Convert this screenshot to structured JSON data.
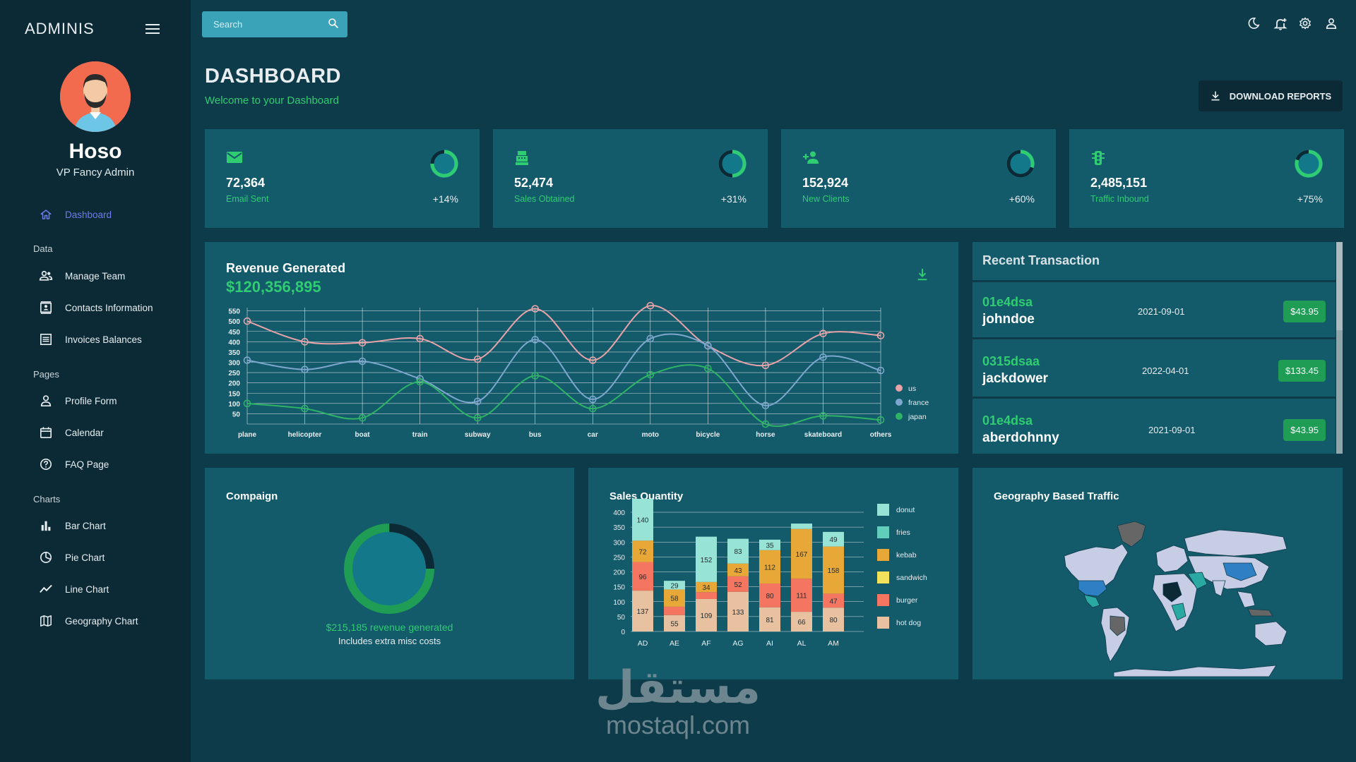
{
  "sidebar": {
    "brand": "ADMINIS",
    "profile": {
      "name": "Hoso",
      "role": "VP Fancy Admin"
    },
    "dashboard_label": "Dashboard",
    "sections": {
      "data": "Data",
      "pages": "Pages",
      "charts": "Charts"
    },
    "items": {
      "manage_team": "Manage Team",
      "contacts": "Contacts Information",
      "invoices": "Invoices Balances",
      "profile_form": "Profile Form",
      "calendar": "Calendar",
      "faq": "FAQ Page",
      "bar_chart": "Bar Chart",
      "pie_chart": "Pie Chart",
      "line_chart": "Line Chart",
      "geo_chart": "Geography Chart"
    }
  },
  "topbar": {
    "search_placeholder": "Search"
  },
  "header": {
    "title": "DASHBOARD",
    "subtitle": "Welcome to your Dashboard",
    "download_label": "DOWNLOAD REPORTS"
  },
  "stats": [
    {
      "value": "72,364",
      "label": "Email Sent",
      "change": "+14%",
      "progress": 0.75,
      "icon": "email-icon"
    },
    {
      "value": "52,474",
      "label": "Sales Obtained",
      "change": "+31%",
      "progress": 0.5,
      "icon": "point-of-sale-icon"
    },
    {
      "value": "152,924",
      "label": "New Clients",
      "change": "+60%",
      "progress": 0.3,
      "icon": "person-add-icon"
    },
    {
      "value": "2,485,151",
      "label": "Traffic Inbound",
      "change": "+75%",
      "progress": 0.8,
      "icon": "traffic-icon"
    }
  ],
  "revenue": {
    "title": "Revenue Generated",
    "amount": "$120,356,895"
  },
  "transactions": {
    "title": "Recent Transaction",
    "items": [
      {
        "txId": "01e4dsa",
        "user": "johndoe",
        "date": "2021-09-01",
        "cost": "$43.95"
      },
      {
        "txId": "0315dsaa",
        "user": "jackdower",
        "date": "2022-04-01",
        "cost": "$133.45"
      },
      {
        "txId": "01e4dsa",
        "user": "aberdohnny",
        "date": "2021-09-01",
        "cost": "$43.95"
      }
    ]
  },
  "campaign": {
    "title": "Compaign",
    "revenue_text": "$215,185 revenue generated",
    "note": "Includes extra misc costs",
    "progress": 0.75
  },
  "sales": {
    "title": "Sales Quantity"
  },
  "geography": {
    "title": "Geography Based Traffic"
  },
  "colors": {
    "accent_green": "#2fcc71",
    "card_bg": "#135a6a",
    "sidebar_bg": "#0b2a36",
    "page_bg": "#0d3b4a"
  },
  "watermark": {
    "arabic": "مستقل",
    "latin": "mostaql.com"
  },
  "chart_data": [
    {
      "type": "line",
      "categories": [
        "plane",
        "helicopter",
        "boat",
        "train",
        "subway",
        "bus",
        "car",
        "moto",
        "bicycle",
        "horse",
        "skateboard",
        "others"
      ],
      "ylim": [
        0,
        600
      ],
      "yticks": [
        50,
        100,
        150,
        200,
        250,
        300,
        350,
        400,
        450,
        500,
        550
      ],
      "grid": true,
      "legend": "right",
      "series": [
        {
          "name": "us",
          "color": "#e8a3a8",
          "values": [
            500,
            400,
            395,
            415,
            315,
            560,
            310,
            575,
            380,
            285,
            440,
            430
          ]
        },
        {
          "name": "france",
          "color": "#7ea7cf",
          "values": [
            310,
            265,
            305,
            220,
            110,
            410,
            120,
            415,
            380,
            90,
            325,
            260
          ]
        },
        {
          "name": "japan",
          "color": "#2fb366",
          "values": [
            100,
            75,
            30,
            205,
            30,
            235,
            75,
            240,
            270,
            0,
            40,
            20
          ]
        }
      ]
    },
    {
      "type": "bar",
      "stacked": true,
      "categories": [
        "AD",
        "AE",
        "AF",
        "AG",
        "AI",
        "AL",
        "AM"
      ],
      "ylim": [
        0,
        450
      ],
      "yticks": [
        0,
        50,
        100,
        150,
        200,
        250,
        300,
        350,
        400
      ],
      "legend": "right",
      "series": [
        {
          "name": "hot dog",
          "color": "#e8c1a0",
          "values": [
            137,
            55,
            109,
            133,
            81,
            66,
            80
          ]
        },
        {
          "name": "burger",
          "color": "#f47560",
          "values": [
            96,
            28,
            23,
            52,
            80,
            111,
            47
          ]
        },
        {
          "name": "sandwich",
          "color": "#f1e15b",
          "values": [
            0,
            0,
            0,
            0,
            0,
            0,
            0
          ]
        },
        {
          "name": "kebab",
          "color": "#e8a838",
          "values": [
            72,
            58,
            34,
            43,
            112,
            167,
            158
          ]
        },
        {
          "name": "fries",
          "color": "#61cdbb",
          "values": [
            0,
            0,
            0,
            0,
            0,
            0,
            0
          ]
        },
        {
          "name": "donut",
          "color": "#97e3d5",
          "values": [
            140,
            29,
            152,
            83,
            35,
            18,
            49
          ]
        }
      ],
      "legend_order": [
        "donut",
        "fries",
        "kebab",
        "sandwich",
        "burger",
        "hot dog"
      ]
    }
  ]
}
